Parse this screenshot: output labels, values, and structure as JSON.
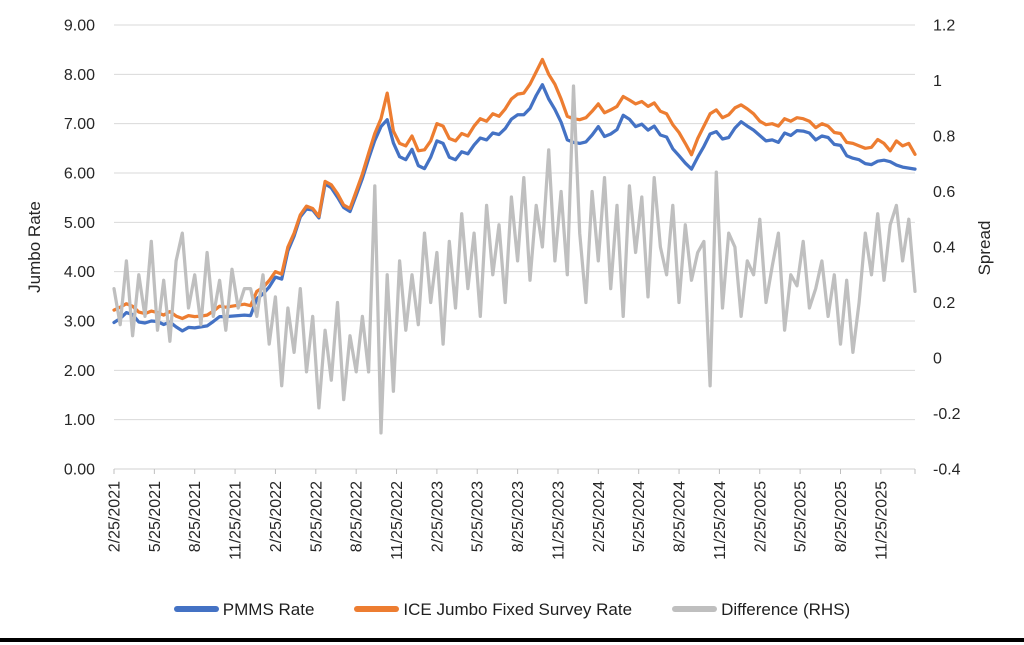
{
  "chart_data": {
    "type": "line",
    "title": "",
    "legend_position": "bottom",
    "grid": "horizontal",
    "left_axis": {
      "label": "Jumbo Rate",
      "range": [
        0,
        9
      ],
      "ticks": [
        "9.00",
        "8.00",
        "7.00",
        "6.00",
        "5.00",
        "4.00",
        "3.00",
        "2.00",
        "1.00",
        "0.00"
      ]
    },
    "right_axis": {
      "label": "Spread",
      "range": [
        -0.4,
        1.2
      ],
      "ticks": [
        "1.2",
        "1",
        "0.8",
        "0.6",
        "0.4",
        "0.2",
        "0",
        "-0.2",
        "-0.4"
      ]
    },
    "x_axis": {
      "start_date": "2/25/2021",
      "weeks_per_point": 2,
      "ticks_every_weeks": 13,
      "tick_labels": [
        "2/25/2021",
        "5/25/2021",
        "8/25/2021",
        "11/25/2021",
        "2/25/2022",
        "5/25/2022",
        "8/25/2022",
        "11/25/2022",
        "2/25/2023",
        "5/25/2023",
        "8/25/2023",
        "11/25/2023",
        "2/25/2024",
        "5/25/2024",
        "8/25/2024",
        "11/25/2024",
        "2/25/2025",
        "5/25/2025",
        "8/25/2025",
        "11/25/2025"
      ]
    },
    "colors": {
      "pmms": "#4472C4",
      "ice_jumbo": "#ED7D31",
      "difference": "#BFBFBF",
      "gridline": "#D9D9D9",
      "tick_mark": "#BFBFBF",
      "text": "#262626"
    },
    "series": [
      {
        "name": "PMMS Rate",
        "data_name": "pmms-line",
        "color": "#4472C4",
        "axis": "left",
        "values": [
          2.97,
          3.05,
          3.17,
          3.13,
          2.98,
          2.96,
          3.0,
          2.99,
          2.93,
          2.98,
          2.88,
          2.8,
          2.87,
          2.86,
          2.88,
          2.9,
          2.99,
          3.09,
          3.09,
          3.1,
          3.11,
          3.12,
          3.11,
          3.45,
          3.55,
          3.69,
          3.89,
          3.85,
          4.42,
          4.72,
          5.11,
          5.27,
          5.25,
          5.09,
          5.78,
          5.7,
          5.51,
          5.3,
          5.22,
          5.55,
          5.89,
          6.29,
          6.66,
          6.94,
          7.08,
          6.61,
          6.33,
          6.27,
          6.48,
          6.15,
          6.09,
          6.32,
          6.65,
          6.6,
          6.32,
          6.27,
          6.43,
          6.39,
          6.57,
          6.71,
          6.67,
          6.81,
          6.78,
          6.9,
          7.09,
          7.18,
          7.18,
          7.31,
          7.57,
          7.79,
          7.5,
          7.29,
          7.03,
          6.67,
          6.62,
          6.6,
          6.63,
          6.77,
          6.94,
          6.74,
          6.79,
          6.88,
          7.17,
          7.09,
          6.94,
          6.99,
          6.87,
          6.95,
          6.77,
          6.73,
          6.49,
          6.35,
          6.2,
          6.08,
          6.32,
          6.54,
          6.79,
          6.84,
          6.69,
          6.72,
          6.91,
          7.04,
          6.95,
          6.87,
          6.76,
          6.65,
          6.67,
          6.62,
          6.81,
          6.76,
          6.86,
          6.85,
          6.81,
          6.67,
          6.75,
          6.72,
          6.58,
          6.56,
          6.35,
          6.3,
          6.27,
          6.19,
          6.17,
          6.24,
          6.26,
          6.23,
          6.16,
          6.12,
          6.1,
          6.08
        ]
      },
      {
        "name": "ICE Jumbo Fixed Survey Rate",
        "data_name": "ice-jumbo-line",
        "color": "#ED7D31",
        "axis": "left",
        "values": [
          3.22,
          3.28,
          3.35,
          3.3,
          3.18,
          3.15,
          3.2,
          3.17,
          3.12,
          3.19,
          3.1,
          3.05,
          3.11,
          3.09,
          3.1,
          3.12,
          3.2,
          3.3,
          3.28,
          3.3,
          3.32,
          3.34,
          3.31,
          3.6,
          3.68,
          3.82,
          4.0,
          3.95,
          4.5,
          4.78,
          5.15,
          5.33,
          5.28,
          5.12,
          5.83,
          5.76,
          5.58,
          5.35,
          5.28,
          5.63,
          5.98,
          6.4,
          6.8,
          7.1,
          7.62,
          6.85,
          6.6,
          6.55,
          6.75,
          6.45,
          6.47,
          6.65,
          7.0,
          6.95,
          6.7,
          6.65,
          6.8,
          6.75,
          6.95,
          7.1,
          7.05,
          7.2,
          7.15,
          7.3,
          7.5,
          7.6,
          7.62,
          7.8,
          8.05,
          8.3,
          8.0,
          7.8,
          7.5,
          7.15,
          7.1,
          7.08,
          7.12,
          7.25,
          7.4,
          7.22,
          7.28,
          7.35,
          7.55,
          7.48,
          7.4,
          7.45,
          7.35,
          7.42,
          7.25,
          7.2,
          6.98,
          6.82,
          6.6,
          6.37,
          6.7,
          6.95,
          7.2,
          7.28,
          7.12,
          7.18,
          7.32,
          7.38,
          7.3,
          7.2,
          7.05,
          6.98,
          7.0,
          6.95,
          7.1,
          7.05,
          7.12,
          7.1,
          7.05,
          6.92,
          7.0,
          6.95,
          6.82,
          6.8,
          6.62,
          6.6,
          6.55,
          6.5,
          6.52,
          6.68,
          6.6,
          6.45,
          6.65,
          6.55,
          6.6,
          6.38
        ]
      },
      {
        "name": "Difference (RHS)",
        "data_name": "difference-line",
        "color": "#BFBFBF",
        "axis": "right",
        "values": [
          0.25,
          0.12,
          0.35,
          0.08,
          0.3,
          0.15,
          0.42,
          0.1,
          0.28,
          0.06,
          0.35,
          0.45,
          0.18,
          0.3,
          0.12,
          0.38,
          0.15,
          0.28,
          0.1,
          0.32,
          0.18,
          0.25,
          0.25,
          0.15,
          0.3,
          0.05,
          0.22,
          -0.1,
          0.18,
          0.02,
          0.25,
          -0.05,
          0.15,
          -0.18,
          0.1,
          -0.08,
          0.2,
          -0.15,
          0.08,
          -0.05,
          0.15,
          -0.05,
          0.62,
          -0.27,
          0.3,
          -0.12,
          0.35,
          0.1,
          0.3,
          0.12,
          0.45,
          0.2,
          0.38,
          0.05,
          0.42,
          0.18,
          0.52,
          0.25,
          0.45,
          0.15,
          0.55,
          0.3,
          0.48,
          0.2,
          0.58,
          0.35,
          0.65,
          0.28,
          0.55,
          0.4,
          0.75,
          0.35,
          0.6,
          0.3,
          0.98,
          0.45,
          0.2,
          0.6,
          0.35,
          0.65,
          0.25,
          0.55,
          0.15,
          0.62,
          0.38,
          0.58,
          0.22,
          0.65,
          0.4,
          0.3,
          0.55,
          0.2,
          0.48,
          0.28,
          0.38,
          0.42,
          -0.1,
          0.67,
          0.18,
          0.45,
          0.4,
          0.15,
          0.35,
          0.3,
          0.5,
          0.2,
          0.33,
          0.45,
          0.1,
          0.3,
          0.26,
          0.42,
          0.18,
          0.25,
          0.35,
          0.15,
          0.3,
          0.05,
          0.28,
          0.02,
          0.2,
          0.45,
          0.3,
          0.52,
          0.28,
          0.48,
          0.55,
          0.35,
          0.5,
          0.24
        ]
      }
    ]
  }
}
